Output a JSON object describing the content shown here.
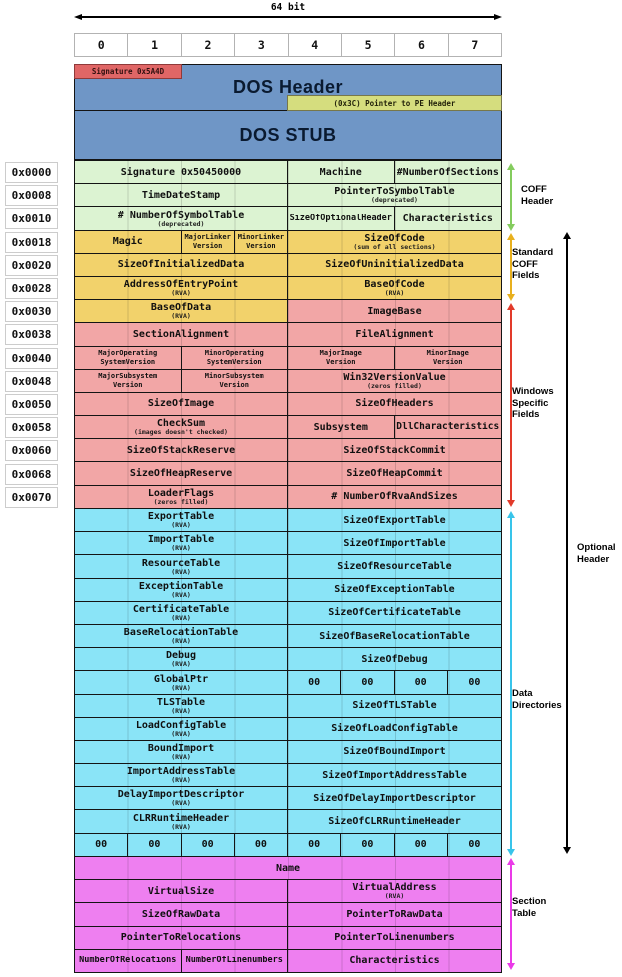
{
  "bit_width_label": "64 bit",
  "columns": [
    "0",
    "1",
    "2",
    "3",
    "4",
    "5",
    "6",
    "7"
  ],
  "dos": {
    "signature_label": "Signature 0x5A4D",
    "header_label": "DOS Header",
    "pe_pointer_label": "(0x3C) Pointer to PE Header",
    "stub_label": "DOS STUB"
  },
  "offsets": [
    "0x0000",
    "0x0008",
    "0x0010",
    "0x0018",
    "0x0020",
    "0x0028",
    "0x0030",
    "0x0038",
    "0x0040",
    "0x0048",
    "0x0050",
    "0x0058",
    "0x0060",
    "0x0068",
    "0x0070"
  ],
  "main_rows": [
    {
      "offset": "0x0000",
      "color": "green",
      "cells": [
        {
          "span": 4,
          "text": "Signature 0x50450000"
        },
        {
          "span": 2,
          "text": "Machine"
        },
        {
          "span": 2,
          "text": "#NumberOfSections"
        }
      ]
    },
    {
      "offset": "0x0008",
      "color": "green",
      "cells": [
        {
          "span": 4,
          "text": "TimeDateStamp"
        },
        {
          "span": 4,
          "text": "PointerToSymbolTable",
          "sub": "(deprecated)"
        }
      ]
    },
    {
      "offset": "0x0010",
      "color": "green",
      "cells": [
        {
          "span": 4,
          "text": "# NumberOfSymbolTable",
          "sub": "(deprecated)"
        },
        {
          "span": 2,
          "text": "SizeOfOptionalHeader"
        },
        {
          "span": 2,
          "text": "Characteristics"
        }
      ]
    },
    {
      "offset": "0x0018",
      "color": "yellow",
      "cells": [
        {
          "span": 2,
          "text": "Magic"
        },
        {
          "span": 1,
          "text": "MajorLinker\nVersion"
        },
        {
          "span": 1,
          "text": "MinorLinker\nVersion"
        },
        {
          "span": 4,
          "text": "SizeOfCode",
          "sub": "(sum of all sections)"
        }
      ]
    },
    {
      "offset": "0x0020",
      "color": "yellow",
      "cells": [
        {
          "span": 4,
          "text": "SizeOfInitializedData"
        },
        {
          "span": 4,
          "text": "SizeOfUninitializedData"
        }
      ]
    },
    {
      "offset": "0x0028",
      "color": "yellow",
      "cells": [
        {
          "span": 4,
          "text": "AddressOfEntryPoint",
          "sub": "(RVA)"
        },
        {
          "span": 4,
          "text": "BaseOfCode",
          "sub": "(RVA)"
        }
      ]
    },
    {
      "offset": "0x0030",
      "color": "pink",
      "cells": [
        {
          "span": 4,
          "text": "BaseOfData",
          "sub": "(RVA)",
          "color": "yellow"
        },
        {
          "span": 4,
          "text": "ImageBase"
        }
      ]
    },
    {
      "offset": "0x0038",
      "color": "pink",
      "cells": [
        {
          "span": 4,
          "text": "SectionAlignment"
        },
        {
          "span": 4,
          "text": "FileAlignment"
        }
      ]
    },
    {
      "offset": "0x0040",
      "color": "pink",
      "cells": [
        {
          "span": 2,
          "text": "MajorOperating\nSystemVersion"
        },
        {
          "span": 2,
          "text": "MinorOperating\nSystemVersion"
        },
        {
          "span": 2,
          "text": "MajorImage\nVersion"
        },
        {
          "span": 2,
          "text": "MinorImage\nVersion"
        }
      ]
    },
    {
      "offset": "0x0048",
      "color": "pink",
      "cells": [
        {
          "span": 2,
          "text": "MajorSubsystem\nVersion"
        },
        {
          "span": 2,
          "text": "MinorSubsystem\nVersion"
        },
        {
          "span": 4,
          "text": "Win32VersionValue",
          "sub": "(zeros filled)"
        }
      ]
    },
    {
      "offset": "0x0050",
      "color": "pink",
      "cells": [
        {
          "span": 4,
          "text": "SizeOfImage"
        },
        {
          "span": 4,
          "text": "SizeOfHeaders"
        }
      ]
    },
    {
      "offset": "0x0058",
      "color": "pink",
      "cells": [
        {
          "span": 4,
          "text": "CheckSum",
          "sub": "(images doesn't checked)"
        },
        {
          "span": 2,
          "text": "Subsystem"
        },
        {
          "span": 2,
          "text": "DllCharacteristics"
        }
      ]
    },
    {
      "offset": "0x0060",
      "color": "pink",
      "cells": [
        {
          "span": 4,
          "text": "SizeOfStackReserve"
        },
        {
          "span": 4,
          "text": "SizeOfStackCommit"
        }
      ]
    },
    {
      "offset": "0x0068",
      "color": "pink",
      "cells": [
        {
          "span": 4,
          "text": "SizeOfHeapReserve"
        },
        {
          "span": 4,
          "text": "SizeOfHeapCommit"
        }
      ]
    },
    {
      "offset": "0x0070",
      "color": "pink",
      "cells": [
        {
          "span": 4,
          "text": "LoaderFlags",
          "sub": "(zeros filled)"
        },
        {
          "span": 4,
          "text": "# NumberOfRvaAndSizes"
        }
      ]
    }
  ],
  "data_directory_rows": [
    {
      "cells": [
        {
          "span": 4,
          "text": "ExportTable",
          "sub": "(RVA)"
        },
        {
          "span": 4,
          "text": "SizeOfExportTable"
        }
      ]
    },
    {
      "cells": [
        {
          "span": 4,
          "text": "ImportTable",
          "sub": "(RVA)"
        },
        {
          "span": 4,
          "text": "SizeOfImportTable"
        }
      ]
    },
    {
      "cells": [
        {
          "span": 4,
          "text": "ResourceTable",
          "sub": "(RVA)"
        },
        {
          "span": 4,
          "text": "SizeOfResourceTable"
        }
      ]
    },
    {
      "cells": [
        {
          "span": 4,
          "text": "ExceptionTable",
          "sub": "(RVA)"
        },
        {
          "span": 4,
          "text": "SizeOfExceptionTable"
        }
      ]
    },
    {
      "cells": [
        {
          "span": 4,
          "text": "CertificateTable",
          "sub": "(RVA)"
        },
        {
          "span": 4,
          "text": "SizeOfCertificateTable"
        }
      ]
    },
    {
      "cells": [
        {
          "span": 4,
          "text": "BaseRelocationTable",
          "sub": "(RVA)"
        },
        {
          "span": 4,
          "text": "SizeOfBaseRelocationTable"
        }
      ]
    },
    {
      "cells": [
        {
          "span": 4,
          "text": "Debug",
          "sub": "(RVA)"
        },
        {
          "span": 4,
          "text": "SizeOfDebug"
        }
      ]
    },
    {
      "cells": [
        {
          "span": 4,
          "text": "GlobalPtr",
          "sub": "(RVA)"
        },
        {
          "span": 1,
          "text": "00"
        },
        {
          "span": 1,
          "text": "00"
        },
        {
          "span": 1,
          "text": "00"
        },
        {
          "span": 1,
          "text": "00"
        }
      ]
    },
    {
      "cells": [
        {
          "span": 4,
          "text": "TLSTable",
          "sub": "(RVA)"
        },
        {
          "span": 4,
          "text": "SizeOfTLSTable"
        }
      ]
    },
    {
      "cells": [
        {
          "span": 4,
          "text": "LoadConfigTable",
          "sub": "(RVA)"
        },
        {
          "span": 4,
          "text": "SizeOfLoadConfigTable"
        }
      ]
    },
    {
      "cells": [
        {
          "span": 4,
          "text": "BoundImport",
          "sub": "(RVA)"
        },
        {
          "span": 4,
          "text": "SizeOfBoundImport"
        }
      ]
    },
    {
      "cells": [
        {
          "span": 4,
          "text": "ImportAddressTable",
          "sub": "(RVA)"
        },
        {
          "span": 4,
          "text": "SizeOfImportAddressTable"
        }
      ]
    },
    {
      "cells": [
        {
          "span": 4,
          "text": "DelayImportDescriptor",
          "sub": "(RVA)"
        },
        {
          "span": 4,
          "text": "SizeOfDelayImportDescriptor"
        }
      ]
    },
    {
      "cells": [
        {
          "span": 4,
          "text": "CLRRuntimeHeader",
          "sub": "(RVA)"
        },
        {
          "span": 4,
          "text": "SizeOfCLRRuntimeHeader"
        }
      ]
    },
    {
      "cells": [
        {
          "span": 1,
          "text": "00"
        },
        {
          "span": 1,
          "text": "00"
        },
        {
          "span": 1,
          "text": "00"
        },
        {
          "span": 1,
          "text": "00"
        },
        {
          "span": 1,
          "text": "00"
        },
        {
          "span": 1,
          "text": "00"
        },
        {
          "span": 1,
          "text": "00"
        },
        {
          "span": 1,
          "text": "00"
        }
      ]
    }
  ],
  "section_table_rows": [
    {
      "cells": [
        {
          "span": 8,
          "text": "Name"
        }
      ]
    },
    {
      "cells": [
        {
          "span": 4,
          "text": "VirtualSize"
        },
        {
          "span": 4,
          "text": "VirtualAddress",
          "sub": "(RVA)"
        }
      ]
    },
    {
      "cells": [
        {
          "span": 4,
          "text": "SizeOfRawData"
        },
        {
          "span": 4,
          "text": "PointerToRawData"
        }
      ]
    },
    {
      "cells": [
        {
          "span": 4,
          "text": "PointerToRelocations"
        },
        {
          "span": 4,
          "text": "PointerToLinenumbers"
        }
      ]
    },
    {
      "cells": [
        {
          "span": 2,
          "text": "NumberOfRelocations"
        },
        {
          "span": 2,
          "text": "NumberOfLinenumbers"
        },
        {
          "span": 4,
          "text": "Characteristics"
        }
      ]
    }
  ],
  "annotations": {
    "coff_header": "COFF\nHeader",
    "standard_coff_fields": "Standard\nCOFF\nFields",
    "windows_specific_fields": "Windows\nSpecific\nFields",
    "optional_header": "Optional\nHeader",
    "data_directories": "Data\nDirectories",
    "section_table": "Section\nTable"
  },
  "colors": {
    "green": "#dcf3d2",
    "yellow": "#f2d26b",
    "pink": "#f2a6a6",
    "cyan": "#8ae4f7",
    "magenta": "#ee7ff0",
    "blue": "#6f96c6",
    "signature_red": "#e06666",
    "pointer_green": "#d5dd7e",
    "arrow_green": "#84cc5e",
    "arrow_orange": "#e8b01e",
    "arrow_red": "#e23a2a",
    "arrow_cyan": "#38c4ea",
    "arrow_magenta": "#ea3ae8",
    "arrow_black": "#000000"
  }
}
